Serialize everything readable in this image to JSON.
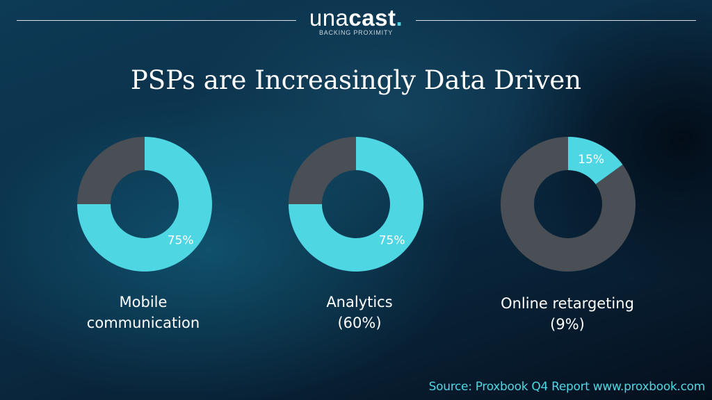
{
  "logo": {
    "word_light": "una",
    "word_bold": "cast",
    "dot": ".",
    "tagline": "BACKING PROXIMITY"
  },
  "title": "PSPs are Increasingly Data Driven",
  "colors": {
    "accent": "#4fd6e3",
    "remainder": "#4a4f55",
    "background": "#0b2e47"
  },
  "chart_data": [
    {
      "type": "pie",
      "donut": true,
      "category": "Mobile communication",
      "category_lines": [
        "Mobile",
        "communication"
      ],
      "value": 75,
      "label": "75%"
    },
    {
      "type": "pie",
      "donut": true,
      "category": "Analytics (60%)",
      "category_lines": [
        "Analytics",
        "(60%)"
      ],
      "value": 75,
      "label": "75%"
    },
    {
      "type": "pie",
      "donut": true,
      "category": "Online retargeting (9%)",
      "category_lines": [
        "Online retargeting",
        "(9%)"
      ],
      "value": 15,
      "label": "15%"
    }
  ],
  "source": "Source: Proxbook Q4 Report www.proxbook.com"
}
